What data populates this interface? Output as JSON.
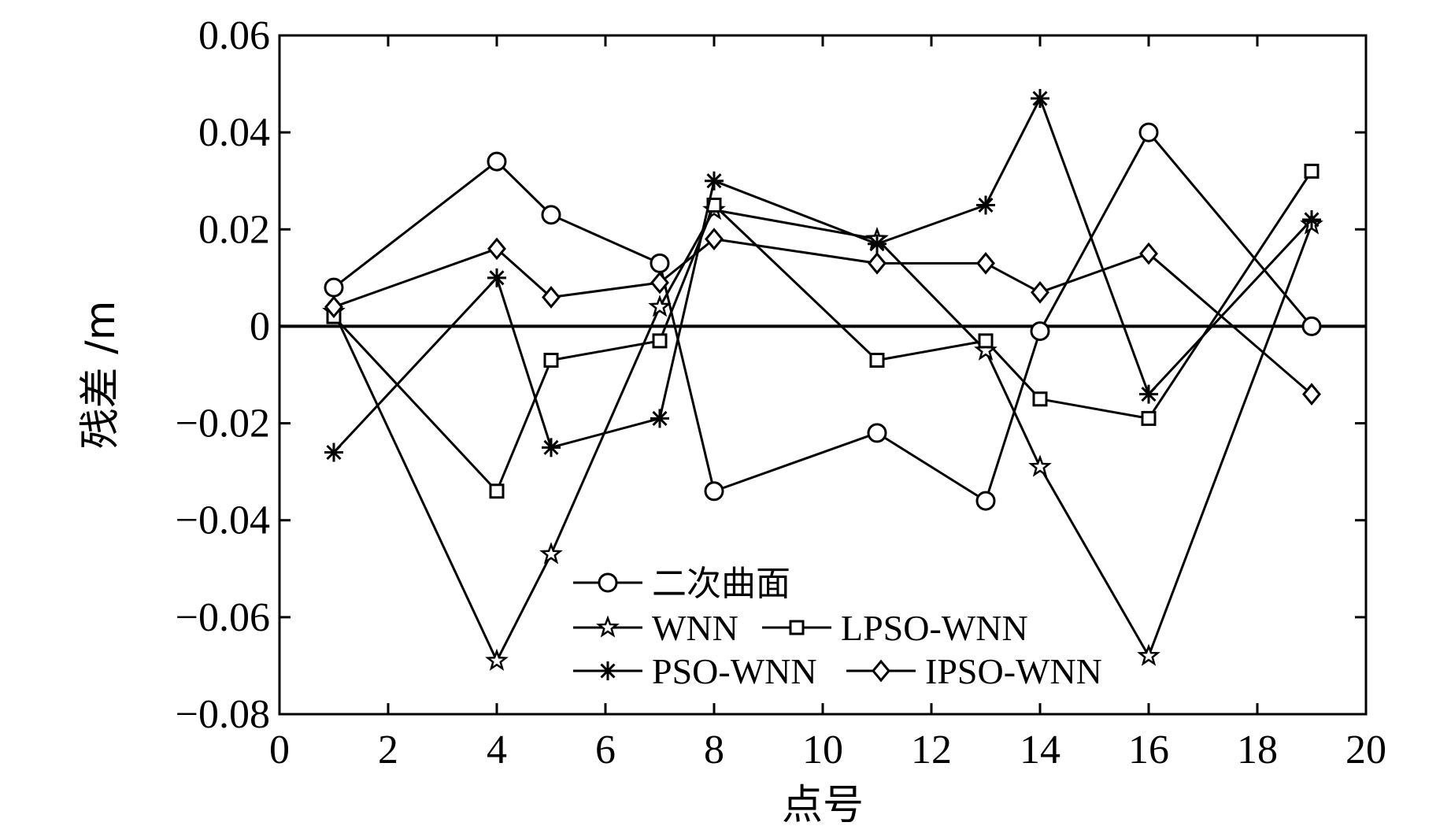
{
  "chart_data": {
    "type": "line",
    "title": "",
    "xlabel": "点号",
    "ylabel": "残差 /m",
    "xlim": [
      0,
      20
    ],
    "ylim": [
      -0.08,
      0.06
    ],
    "xticks": [
      0,
      2,
      4,
      6,
      8,
      10,
      12,
      14,
      16,
      18,
      20
    ],
    "yticks": [
      0.06,
      0.04,
      0.02,
      0,
      -0.02,
      -0.04,
      -0.06,
      -0.08
    ],
    "xtick_labels": [
      "0",
      "2",
      "4",
      "6",
      "8",
      "10",
      "12",
      "14",
      "16",
      "18",
      "20"
    ],
    "ytick_labels": [
      "0.06",
      "0.04",
      "0.02",
      "0",
      "−0.02",
      "−0.04",
      "−0.06",
      "−0.08"
    ],
    "grid": false,
    "zero_line": true,
    "legend_position": "lower-center",
    "x": [
      1,
      4,
      5,
      7,
      8,
      11,
      13,
      14,
      16,
      19
    ],
    "series": [
      {
        "name": "二次曲面",
        "marker": "circle",
        "values": [
          0.008,
          0.034,
          0.023,
          0.013,
          -0.034,
          -0.022,
          -0.036,
          -0.001,
          0.04,
          0.0
        ]
      },
      {
        "name": "WNN",
        "marker": "star",
        "values": [
          0.003,
          -0.069,
          -0.047,
          0.004,
          0.024,
          0.018,
          -0.005,
          -0.029,
          -0.068,
          0.021
        ]
      },
      {
        "name": "LPSO-WNN",
        "marker": "square",
        "values": [
          0.002,
          -0.034,
          -0.007,
          -0.003,
          0.025,
          -0.007,
          -0.003,
          -0.015,
          -0.019,
          0.032
        ]
      },
      {
        "name": "PSO-WNN",
        "marker": "asterisk",
        "values": [
          -0.026,
          0.01,
          -0.025,
          -0.019,
          0.03,
          0.017,
          0.025,
          0.047,
          -0.014,
          0.022
        ]
      },
      {
        "name": "IPSO-WNN",
        "marker": "diamond",
        "values": [
          0.004,
          0.016,
          0.006,
          0.009,
          0.018,
          0.013,
          0.013,
          0.007,
          0.015,
          -0.014
        ]
      }
    ]
  }
}
